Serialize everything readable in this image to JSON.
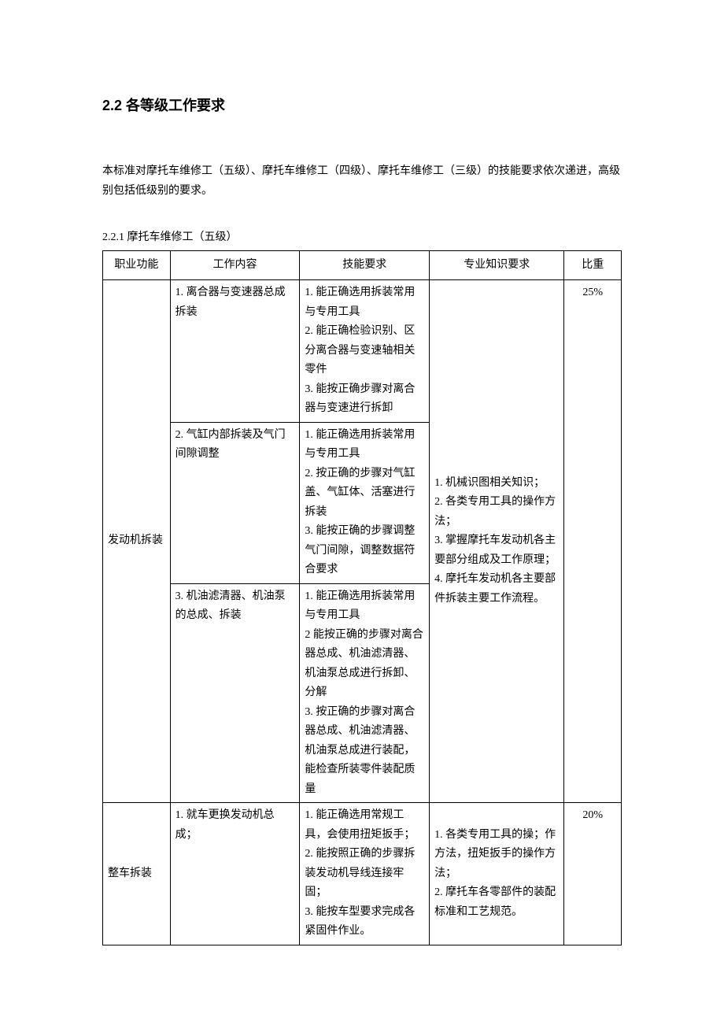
{
  "section_heading": "2.2 各等级工作要求",
  "intro_text": "本标准对摩托车维修工（五级）、摩托车维修工（四级）、摩托车维修工（三级）的技能要求依次递进，高级别包括低级别的要求。",
  "table_caption": "2.2.1 摩托车维修工（五级）",
  "headers": {
    "col1": "职业功能",
    "col2": "工作内容",
    "col3": "技能要求",
    "col4": "专业知识要求",
    "col5": "比重"
  },
  "rows": [
    {
      "function": "发动机拆装",
      "subrows": [
        {
          "content": "1.  离合器与变速器总成拆装",
          "skill": "1. 能正确选用拆装常用与专用工具\n2. 能正确检验识别、区分离合器与变速轴相关零件\n3.  能按正确步骤对离合器与变速进行拆卸"
        },
        {
          "content": "2.  气缸内部拆装及气门间隙调整",
          "skill": "1. 能正确选用拆装常用与专用工具\n2.  按正确的步骤对气缸盖、气缸体、活塞进行拆装\n3.  能按正确的步骤调整气门间隙，调整数据符合要求"
        },
        {
          "content": "3. 机油滤清器、机油泵的总成、拆装",
          "skill": "1. 能正确选用拆装常用与专用工具\n2 能按正确的步骤对离合器总成、机油滤清器、机油泵总成进行拆卸、分解\n3.  按正确的步骤对离合器总成、机油滤清器、机油泵总成进行装配，能检查所装零件装配质量"
        }
      ],
      "knowledge": "1. 机械识图相关知识；\n2. 各类专用工具的操作方法；\n3. 掌握摩托车发动机各主要部分组成及工作原理；\n4. 摩托车发动机各主要部件拆装主要工作流程。",
      "weight": "25%"
    },
    {
      "function": "整车拆装",
      "subrows": [
        {
          "content": "1. 就车更换发动机总成；",
          "skill": "1. 能正确选用常规工具，会使用扭矩扳手；\n2. 能按照正确的步骤拆装发动机导线连接牢固；\n3. 能按车型要求完成各紧固件作业。"
        }
      ],
      "knowledge": "1. 各类专用工具的操；作方法，扭矩扳手的操作方法；\n2. 摩托车各零部件的装配标准和工艺规范。",
      "weight": "20%"
    }
  ]
}
